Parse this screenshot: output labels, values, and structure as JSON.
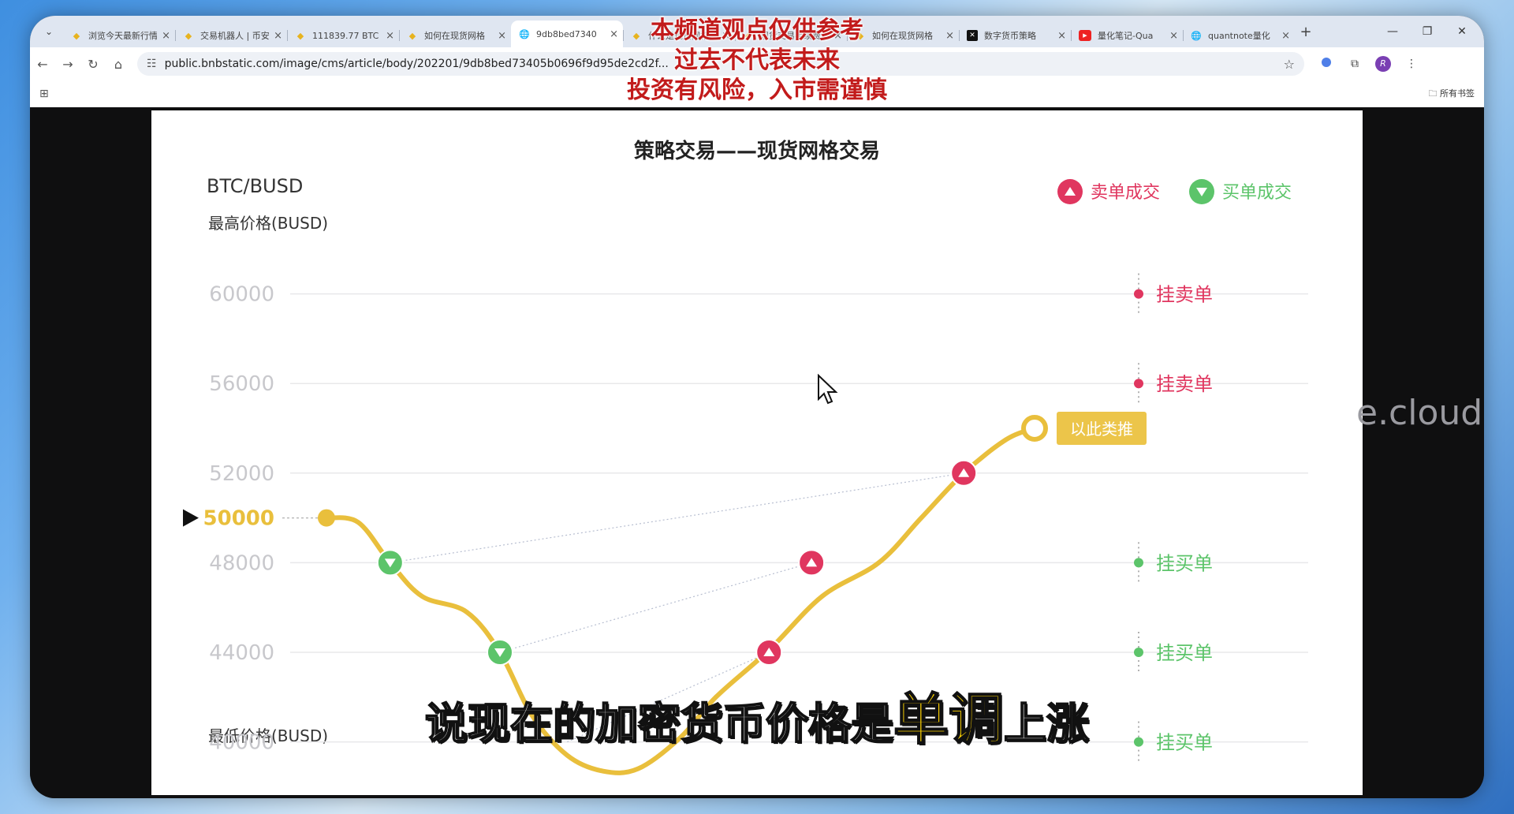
{
  "browser": {
    "tabs": [
      {
        "title": "浏览今天最新行情",
        "icon": "binance-icon",
        "active": false
      },
      {
        "title": "交易机器人 | 币安",
        "icon": "binance-icon",
        "active": false
      },
      {
        "title": "111839.77 BTC",
        "icon": "binance-icon",
        "active": false
      },
      {
        "title": "如何在现货网格",
        "icon": "binance-icon",
        "active": false
      },
      {
        "title": "9db8bed7340",
        "icon": "globe-icon",
        "active": true
      },
      {
        "title": "什么是现货网格",
        "icon": "binance-icon",
        "active": false
      },
      {
        "title": "现货交易手续费",
        "icon": "binance-icon",
        "active": false
      },
      {
        "title": "如何在现货网格",
        "icon": "binance-icon",
        "active": false
      },
      {
        "title": "数字货币策略",
        "icon": "x-icon",
        "active": false
      },
      {
        "title": "量化笔记-Qua",
        "icon": "youtube-icon",
        "active": false
      },
      {
        "title": "quantnote量化",
        "icon": "globe-icon",
        "active": false
      }
    ],
    "url": "public.bnbstatic.com/image/cms/article/body/202201/9db8bed73405b0696f9d95de2cd2f...",
    "bookmarks_all": "所有书签",
    "profile_initial": "R"
  },
  "overlay": {
    "notice_lines": [
      "本频道观点仅供参考",
      "过去不代表未来",
      "投资有风险，入市需谨慎"
    ],
    "subtitle_pre": "说现在的加密货币价格是",
    "subtitle_highlight": "单调",
    "subtitle_post": "上涨",
    "watermark": "e.cloud"
  },
  "chart_data": {
    "type": "line",
    "title": "策略交易——现货网格交易",
    "pair": "BTC/BUSD",
    "ylabel_top": "最高价格(BUSD)",
    "ylabel_bottom": "最低价格(BUSD)",
    "ylim": [
      39000,
      61500
    ],
    "y_ticks": [
      60000,
      56000,
      52000,
      48000,
      44000,
      40000
    ],
    "current_price": 50000,
    "legend": [
      {
        "label": "卖单成交",
        "color": "#e0365f",
        "marker": "up-triangle"
      },
      {
        "label": "买单成交",
        "color": "#5cc46a",
        "marker": "down-triangle"
      }
    ],
    "price_path": {
      "x": [
        0,
        4.5,
        9,
        13.5,
        19.8,
        24.5,
        29,
        34,
        39,
        44,
        50,
        55,
        62.5,
        70,
        78,
        84,
        90,
        96,
        100
      ],
      "y": [
        50000,
        49800,
        48000,
        46500,
        45800,
        44000,
        41200,
        39400,
        38700,
        38800,
        40200,
        42000,
        44100,
        46500,
        48000,
        50000,
        52000,
        53500,
        54000
      ]
    },
    "trades": [
      {
        "side": "buy",
        "x": 9,
        "price": 48000
      },
      {
        "side": "buy",
        "x": 24.5,
        "price": 44000
      },
      {
        "side": "sell",
        "x": 62.5,
        "price": 44000
      },
      {
        "side": "sell",
        "x": 68.5,
        "price": 48000
      },
      {
        "side": "sell",
        "x": 90,
        "price": 52000
      }
    ],
    "pair_links": [
      {
        "from_x": 9,
        "from_price": 48000,
        "to_x": 90,
        "to_price": 52000
      },
      {
        "from_x": 24.5,
        "from_price": 44000,
        "to_x": 68.5,
        "to_price": 48000
      },
      {
        "from_x": 34,
        "from_price": 40000,
        "to_x": 62.5,
        "to_price": 44000
      }
    ],
    "pending_orders": [
      {
        "price": 60000,
        "label": "挂卖单",
        "side": "sell"
      },
      {
        "price": 56000,
        "label": "挂卖单",
        "side": "sell"
      },
      {
        "price": 48000,
        "label": "挂买单",
        "side": "buy"
      },
      {
        "price": 44000,
        "label": "挂买单",
        "side": "buy"
      },
      {
        "price": 40000,
        "label": "挂买单",
        "side": "buy"
      }
    ],
    "end_note": "以此类推",
    "colors": {
      "line": "#e9bf3c",
      "buy": "#5cc46a",
      "sell": "#e0365f",
      "axis_text": "#c8c8cc",
      "current": "#e9bf3c"
    }
  }
}
